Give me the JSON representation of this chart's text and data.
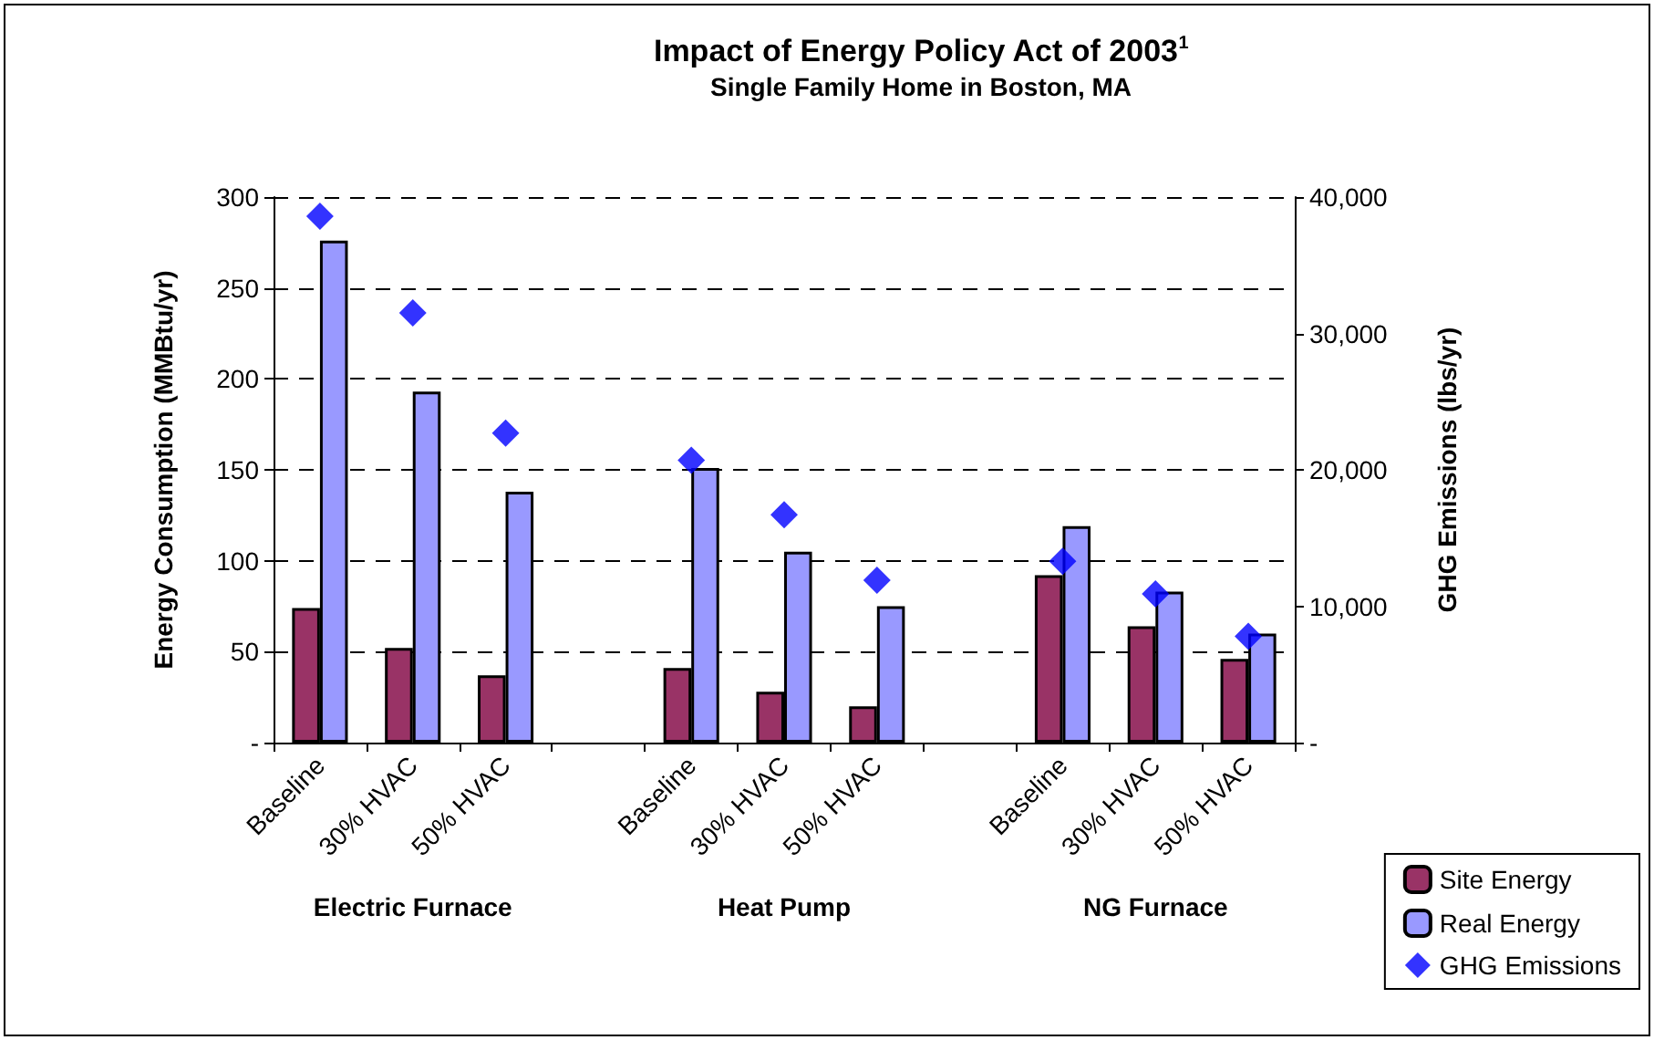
{
  "chart_data": {
    "type": "bar",
    "title": "Impact of Energy Policy Act of 2003$^{1}$",
    "subtitle": "Single Family Home in Boston, MA",
    "ylabel": "Energy Consumption (MMBtu/yr)",
    "y2label": "GHG Emissions (lbs/yr)",
    "categories": [
      "Baseline",
      "30% HVAC",
      "50% HVAC",
      null,
      "Baseline",
      "30% HVAC",
      "50% HVAC",
      null,
      "Baseline",
      "30% HVAC",
      "50% HVAC"
    ],
    "series": [
      {
        "name": "Site Energy",
        "color": "#993366",
        "values": [
          74,
          52,
          37,
          null,
          41,
          28,
          20,
          null,
          92,
          64,
          46
        ]
      },
      {
        "name": "Real Energy",
        "color": "#9999ff",
        "values": [
          276,
          193,
          138,
          null,
          151,
          105,
          75,
          null,
          119,
          83,
          60
        ]
      },
      {
        "name": "GHG Emissions",
        "type": "scatter",
        "axis": "y2",
        "color": "#0000ff",
        "values": [
          38600,
          31500,
          22700,
          null,
          20700,
          16700,
          11900,
          null,
          13300,
          10900,
          7800
        ]
      }
    ],
    "annotations": [
      "Electric Furnace",
      "Heat Pump",
      "NG Furnace"
    ],
    "ylim": [
      0,
      300
    ],
    "yticks": [
      {
        "value": 0,
        "label": "-"
      },
      50,
      100,
      150,
      200,
      250,
      300
    ],
    "y2lim": [
      0,
      40000
    ],
    "y2ticks": [
      {
        "value": 0,
        "label": "-"
      },
      {
        "value": 10000,
        "label": "10,000"
      },
      {
        "value": 20000,
        "label": "20,000"
      },
      {
        "value": 30000,
        "label": "30,000"
      },
      {
        "value": 40000,
        "label": "40,000"
      }
    ],
    "grid": "y",
    "legend": "bottom right",
    "marker": "diamond"
  }
}
